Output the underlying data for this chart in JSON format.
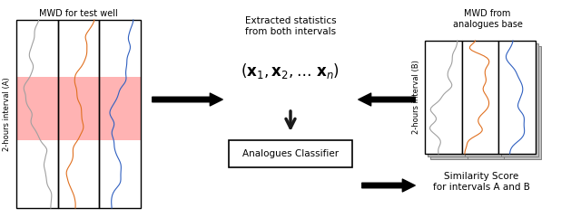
{
  "title_left": "MWD for test well",
  "title_right": "MWD from\nanalogues base",
  "label_left": "2-hours interval (A)",
  "label_right": "2-hours interval (B)",
  "center_top_text": "Extracted statistics\nfrom both intervals",
  "center_formula": "(x₁, x₂, … xₙ)",
  "center_box_text": "Analogues Classifier",
  "bottom_right_text": "Similarity Score\nfor intervals A and B",
  "arrow_color": "#1a1a1a",
  "bg_color": "#ffffff",
  "highlight_color": "#ffb3b3",
  "line_gray": "#a0a0a0",
  "line_orange": "#e07020",
  "line_blue": "#3060c0"
}
